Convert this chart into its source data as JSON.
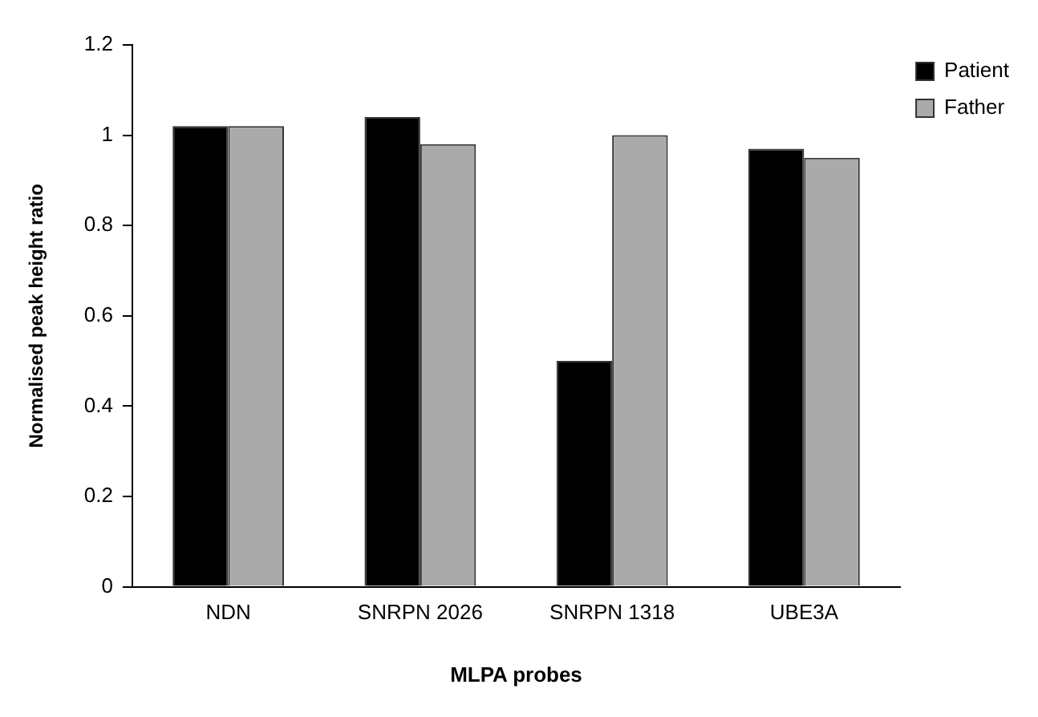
{
  "chart_data": {
    "type": "bar",
    "xlabel": "MLPA probes",
    "ylabel": "Normalised peak height ratio",
    "categories": [
      "NDN",
      "SNRPN 2026",
      "SNRPN 1318",
      "UBE3A"
    ],
    "series": [
      {
        "name": "Patient",
        "color": "#000000",
        "values": [
          1.02,
          1.04,
          0.5,
          0.97
        ]
      },
      {
        "name": "Father",
        "color": "#aaaaaa",
        "values": [
          1.02,
          0.98,
          1.0,
          0.95
        ]
      }
    ],
    "ylim": [
      0,
      1.2
    ],
    "yticks": [
      0,
      0.2,
      0.4,
      0.6,
      0.8,
      1,
      1.2
    ],
    "grid": false,
    "legend": "top right"
  }
}
